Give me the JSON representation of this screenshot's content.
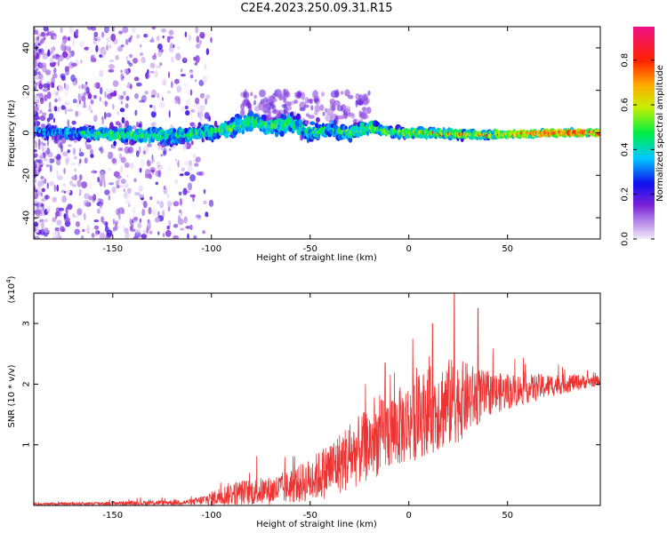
{
  "title": "C2E4.2023.250.09.31.R15",
  "chart_data": [
    {
      "type": "heatmap",
      "xlabel": "Height of straight line (km)",
      "ylabel": "Frequency (Hz)",
      "xlim": [
        -190,
        97
      ],
      "ylim": [
        -50,
        50
      ],
      "xticks": [
        -150,
        -100,
        -50,
        0,
        50
      ],
      "yticks": [
        -40,
        -20,
        0,
        20,
        40
      ],
      "colorbar": {
        "label": "Normalized spectral amplitude",
        "range": [
          0.0,
          0.95
        ],
        "ticks": [
          0.0,
          0.2,
          0.4,
          0.6,
          0.8
        ],
        "tick_labels": [
          "0.0",
          "0.2",
          "0.4",
          "0.6",
          "0.8"
        ],
        "colormap": "purple-blue-cyan-green-yellow-red-magenta"
      },
      "ridge": [
        {
          "x": -180,
          "f": 0.5,
          "spread": 3.5,
          "amp": 0.35
        },
        {
          "x": -160,
          "f": -0.5,
          "spread": 4.0,
          "amp": 0.45
        },
        {
          "x": -140,
          "f": -1.0,
          "spread": 5.0,
          "amp": 0.5
        },
        {
          "x": -120,
          "f": -1.5,
          "spread": 5.0,
          "amp": 0.45
        },
        {
          "x": -100,
          "f": 0.5,
          "spread": 5.0,
          "amp": 0.45
        },
        {
          "x": -90,
          "f": 2.0,
          "spread": 5.5,
          "amp": 0.5
        },
        {
          "x": -80,
          "f": 6.0,
          "spread": 6.0,
          "amp": 0.5
        },
        {
          "x": -70,
          "f": 3.0,
          "spread": 6.0,
          "amp": 0.5
        },
        {
          "x": -60,
          "f": 5.0,
          "spread": 6.0,
          "amp": 0.45
        },
        {
          "x": -50,
          "f": 0.0,
          "spread": 6.0,
          "amp": 0.45
        },
        {
          "x": -40,
          "f": 2.0,
          "spread": 5.5,
          "amp": 0.45
        },
        {
          "x": -30,
          "f": 0.0,
          "spread": 5.0,
          "amp": 0.5
        },
        {
          "x": -20,
          "f": 2.5,
          "spread": 4.5,
          "amp": 0.55
        },
        {
          "x": -10,
          "f": 0.5,
          "spread": 3.0,
          "amp": 0.55
        },
        {
          "x": 0,
          "f": 0.0,
          "spread": 3.0,
          "amp": 0.55
        },
        {
          "x": 20,
          "f": -0.5,
          "spread": 2.5,
          "amp": 0.6
        },
        {
          "x": 40,
          "f": -1.0,
          "spread": 2.0,
          "amp": 0.65
        },
        {
          "x": 60,
          "f": -0.5,
          "spread": 1.8,
          "amp": 0.75
        },
        {
          "x": 80,
          "f": 0.0,
          "spread": 1.5,
          "amp": 0.8
        },
        {
          "x": 97,
          "f": 0.0,
          "spread": 1.5,
          "amp": 0.85
        }
      ]
    },
    {
      "type": "line",
      "xlabel": "Height of straight line (km)",
      "ylabel": "SNR (10 * v/v)",
      "yscale_label": "(x10",
      "yscale_exp": "4",
      "yscale_close": ")",
      "xlim": [
        -190,
        97
      ],
      "ylim": [
        0,
        3.5
      ],
      "xticks": [
        -150,
        -100,
        -50,
        0,
        50
      ],
      "yticks": [
        1,
        2,
        3
      ],
      "color": "#ee3333",
      "envelope": [
        {
          "x": -190,
          "base": 0.02,
          "amp": 0.02
        },
        {
          "x": -130,
          "base": 0.04,
          "amp": 0.05
        },
        {
          "x": -110,
          "base": 0.05,
          "amp": 0.06
        },
        {
          "x": -100,
          "base": 0.1,
          "amp": 0.15
        },
        {
          "x": -90,
          "base": 0.18,
          "amp": 0.25
        },
        {
          "x": -70,
          "base": 0.22,
          "amp": 0.3
        },
        {
          "x": -60,
          "base": 0.28,
          "amp": 0.35
        },
        {
          "x": -50,
          "base": 0.38,
          "amp": 0.45
        },
        {
          "x": -40,
          "base": 0.55,
          "amp": 0.6
        },
        {
          "x": -30,
          "base": 0.75,
          "amp": 0.7
        },
        {
          "x": -20,
          "base": 0.95,
          "amp": 0.75
        },
        {
          "x": -10,
          "base": 1.15,
          "amp": 0.8
        },
        {
          "x": 0,
          "base": 1.3,
          "amp": 0.85
        },
        {
          "x": 10,
          "base": 1.5,
          "amp": 0.9
        },
        {
          "x": 20,
          "base": 1.6,
          "amp": 0.95
        },
        {
          "x": 30,
          "base": 1.7,
          "amp": 0.75
        },
        {
          "x": 40,
          "base": 1.8,
          "amp": 0.45
        },
        {
          "x": 60,
          "base": 1.9,
          "amp": 0.3
        },
        {
          "x": 80,
          "base": 2.0,
          "amp": 0.2
        },
        {
          "x": 97,
          "base": 2.05,
          "amp": 0.1
        }
      ],
      "peaks": [
        {
          "x": 23,
          "y": 3.5
        },
        {
          "x": 12,
          "y": 3.0
        },
        {
          "x": 35,
          "y": 3.25
        },
        {
          "x": 2,
          "y": 2.75
        },
        {
          "x": -22,
          "y": 2.0
        },
        {
          "x": -12,
          "y": 2.35
        }
      ]
    }
  ]
}
